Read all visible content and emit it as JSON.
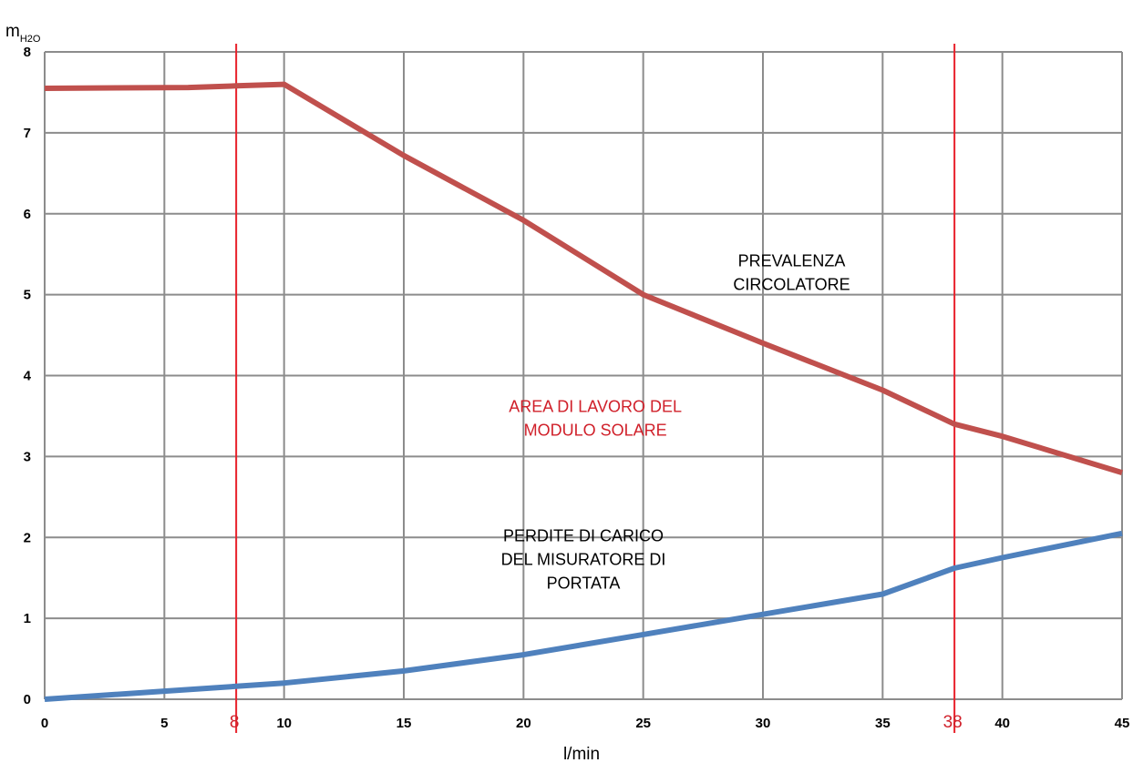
{
  "chart_data": {
    "type": "line",
    "xlabel": "l/min",
    "ylabel": "m",
    "ylabel_sub": "H2O",
    "xlim": [
      0,
      45
    ],
    "ylim": [
      0,
      8
    ],
    "x_ticks": [
      0,
      5,
      10,
      15,
      20,
      25,
      30,
      35,
      40,
      45
    ],
    "y_ticks": [
      0,
      1,
      2,
      3,
      4,
      5,
      6,
      7,
      8
    ],
    "grid": true,
    "series": [
      {
        "name": "PREVALENZA CIRCOLATORE",
        "color": "#c0504d",
        "x": [
          0,
          6,
          8,
          10,
          15,
          20,
          25,
          30,
          35,
          38,
          40,
          45
        ],
        "y": [
          7.55,
          7.56,
          7.58,
          7.6,
          6.72,
          5.92,
          5.0,
          4.4,
          3.82,
          3.4,
          3.25,
          2.8
        ]
      },
      {
        "name": "PERDITE DI CARICO DEL MISURATORE DI PORTATA",
        "color": "#4f81bd",
        "x": [
          0,
          5,
          8,
          10,
          15,
          20,
          25,
          30,
          35,
          38,
          40,
          45
        ],
        "y": [
          0.0,
          0.1,
          0.16,
          0.2,
          0.35,
          0.55,
          0.8,
          1.05,
          1.3,
          1.62,
          1.75,
          2.05
        ]
      }
    ],
    "vertical_markers": [
      {
        "x": 8,
        "label": "8",
        "color": "#e8202a"
      },
      {
        "x": 38,
        "label": "38",
        "color": "#e8202a"
      }
    ],
    "annotations": [
      {
        "lines": [
          "PREVALENZA",
          "CIRCOLATORE"
        ],
        "x": 31.2,
        "y": 5.35,
        "color": "#000000"
      },
      {
        "lines": [
          "AREA DI LAVORO DEL",
          "MODULO SOLARE"
        ],
        "x": 23.0,
        "y": 3.55,
        "color": "#d0202a"
      },
      {
        "lines": [
          "PERDITE DI CARICO",
          "DEL MISURATORE DI",
          "PORTATA"
        ],
        "x": 22.5,
        "y": 1.95,
        "color": "#000000"
      }
    ]
  }
}
